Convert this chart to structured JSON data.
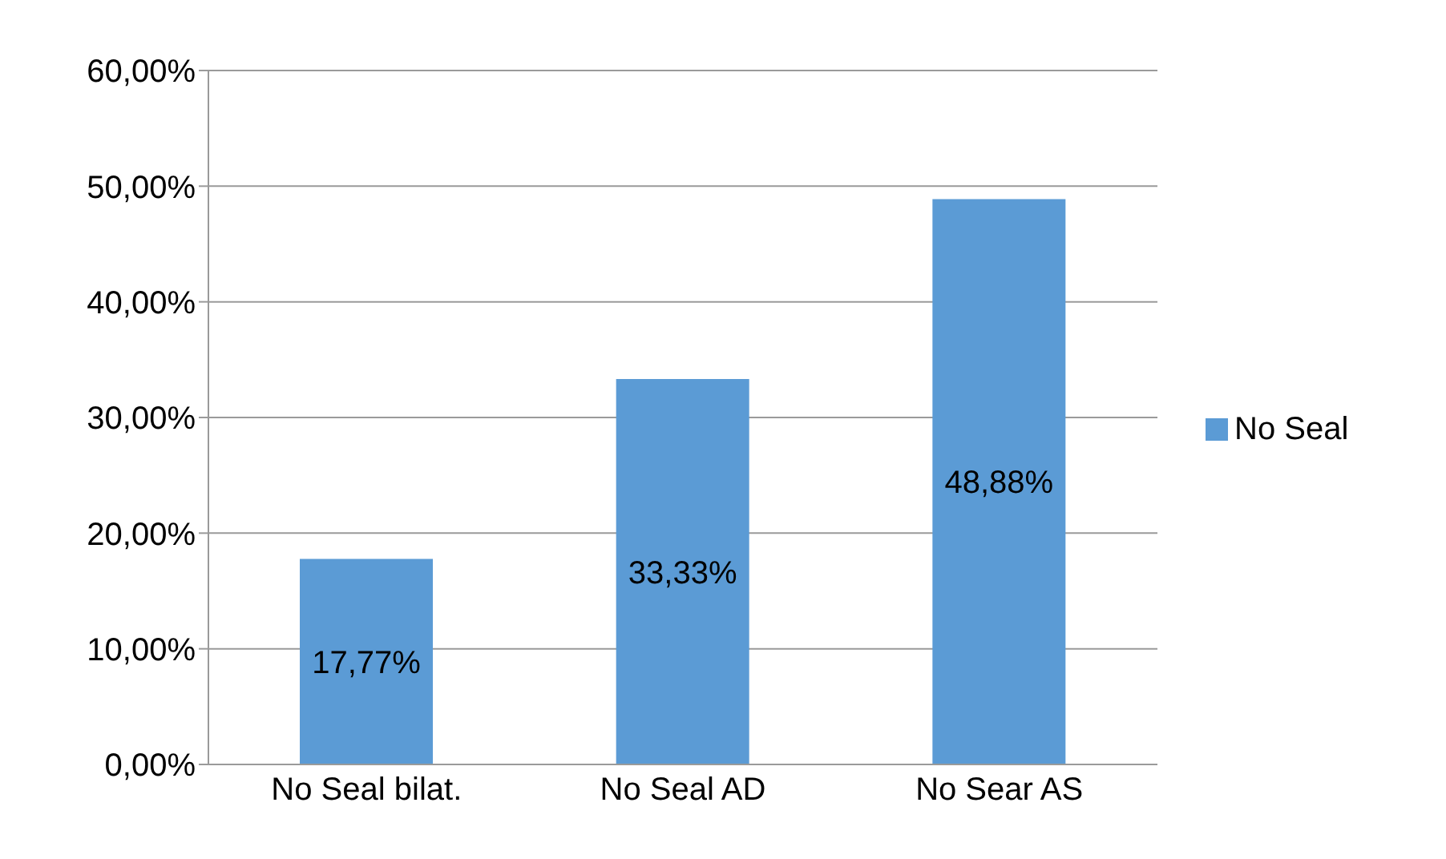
{
  "chart_data": {
    "type": "bar",
    "categories": [
      "No Seal bilat.",
      "No Seal AD",
      "No Sear AS"
    ],
    "series": [
      {
        "name": "No Seal",
        "color": "#5b9bd5",
        "values": [
          17.77,
          33.33,
          48.88
        ],
        "value_labels": [
          "17,77%",
          "33,33%",
          "48,88%"
        ]
      }
    ],
    "ylim": [
      0,
      60
    ],
    "yticks": [
      {
        "value": 0,
        "label": "0,00%"
      },
      {
        "value": 10,
        "label": "10,00%"
      },
      {
        "value": 20,
        "label": "20,00%"
      },
      {
        "value": 30,
        "label": "30,00%"
      },
      {
        "value": 40,
        "label": "40,00%"
      },
      {
        "value": 50,
        "label": "50,00%"
      },
      {
        "value": 60,
        "label": "60,00%"
      }
    ],
    "grid": "y",
    "legend": "right"
  }
}
